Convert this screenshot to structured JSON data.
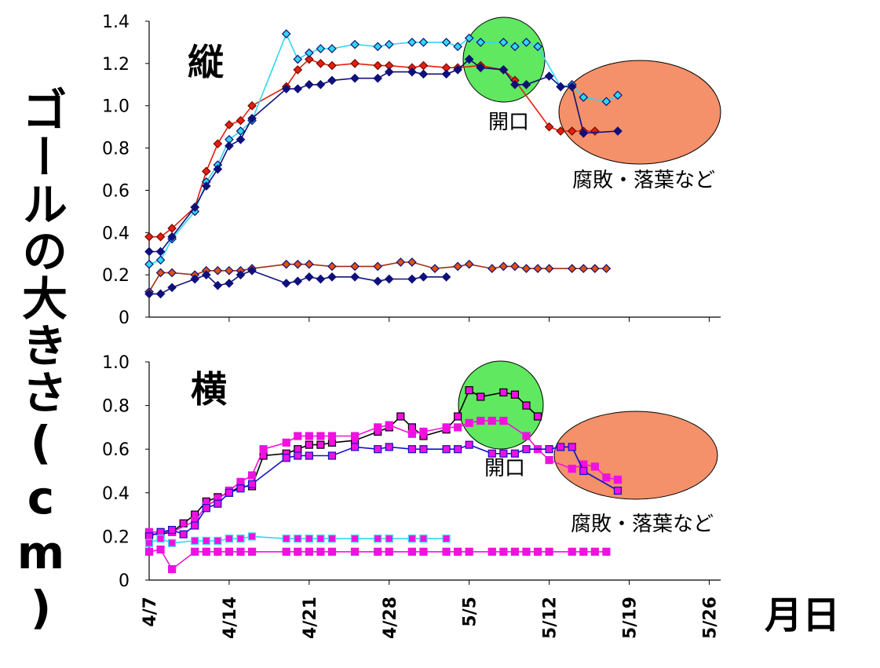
{
  "y_axis_label": "ゴールの大きさ(cm)",
  "x_axis_label": "月日",
  "x_ticks": [
    "4/7",
    "4/14",
    "4/21",
    "4/28",
    "5/5",
    "5/12",
    "5/19",
    "5/26"
  ],
  "colors": {
    "red": "#e02010",
    "cyan": "#30d8f0",
    "navy": "#10107a",
    "brown": "#a03010",
    "magenta": "#f010e0",
    "blue": "#1010c8",
    "green_ellipse": "#60e860",
    "orange_ellipse": "#f4906a"
  },
  "chart_data": [
    {
      "type": "line",
      "title": "縦",
      "ylim": [
        0,
        1.4
      ],
      "yticks": [
        "0",
        "0.2",
        "0.4",
        "0.6",
        "0.8",
        "1.0",
        "1.2",
        "1.4"
      ],
      "x_unit": "day (0 = 4/7)",
      "annotations": [
        {
          "text": "開口",
          "shape": "green ellipse"
        },
        {
          "text": "腐敗・落葉など",
          "shape": "orange ellipse"
        }
      ],
      "series": [
        {
          "color": "red",
          "marker": "diamond",
          "x": [
            0,
            1,
            2,
            4,
            5,
            6,
            7,
            8,
            9,
            12,
            13,
            14,
            15,
            16,
            18,
            20,
            21,
            23,
            24,
            26,
            27,
            29,
            31,
            32,
            35,
            36,
            37,
            38,
            39
          ],
          "y": [
            0.38,
            0.38,
            0.42,
            0.52,
            0.69,
            0.82,
            0.91,
            0.93,
            1.0,
            1.09,
            1.17,
            1.22,
            1.2,
            1.19,
            1.2,
            1.19,
            1.19,
            1.18,
            1.19,
            1.18,
            1.18,
            1.19,
            1.17,
            1.12,
            0.9,
            0.88,
            0.88,
            0.88,
            0.88
          ]
        },
        {
          "color": "cyan",
          "marker": "diamond",
          "x": [
            0,
            1,
            2,
            4,
            5,
            6,
            7,
            8,
            9,
            12,
            13,
            14,
            15,
            16,
            18,
            20,
            21,
            23,
            24,
            26,
            27,
            28,
            29,
            31,
            32,
            33,
            34,
            36,
            37,
            38,
            40,
            41
          ],
          "y": [
            0.25,
            0.27,
            0.37,
            0.5,
            0.64,
            0.72,
            0.84,
            0.88,
            0.93,
            1.34,
            1.22,
            1.25,
            1.27,
            1.27,
            1.29,
            1.28,
            1.29,
            1.3,
            1.3,
            1.3,
            1.28,
            1.32,
            1.3,
            1.3,
            1.28,
            1.3,
            1.28,
            1.09,
            1.1,
            1.04,
            1.02,
            1.05
          ]
        },
        {
          "color": "navy",
          "marker": "diamond",
          "x": [
            0,
            1,
            2,
            4,
            5,
            6,
            7,
            8,
            9,
            12,
            13,
            14,
            15,
            16,
            18,
            20,
            21,
            23,
            24,
            26,
            27,
            28,
            29,
            31,
            32,
            33,
            35,
            36,
            37,
            38,
            41
          ],
          "y": [
            0.31,
            0.31,
            0.38,
            0.52,
            0.62,
            0.7,
            0.81,
            0.84,
            0.94,
            1.08,
            1.08,
            1.1,
            1.1,
            1.12,
            1.13,
            1.13,
            1.16,
            1.16,
            1.15,
            1.15,
            1.17,
            1.22,
            1.18,
            1.17,
            1.1,
            1.1,
            1.14,
            1.09,
            1.09,
            0.87,
            0.88
          ]
        },
        {
          "color": "brown",
          "marker": "diamond",
          "x": [
            0,
            1,
            2,
            4,
            5,
            6,
            7,
            8,
            9,
            12,
            13,
            14,
            16,
            18,
            20,
            22,
            23,
            25,
            27,
            28,
            30,
            31,
            32,
            33,
            34,
            35,
            37,
            38,
            39,
            40
          ],
          "y": [
            0.12,
            0.21,
            0.21,
            0.2,
            0.22,
            0.22,
            0.22,
            0.22,
            0.23,
            0.25,
            0.25,
            0.25,
            0.24,
            0.24,
            0.24,
            0.26,
            0.26,
            0.23,
            0.24,
            0.25,
            0.23,
            0.24,
            0.24,
            0.23,
            0.23,
            0.23,
            0.23,
            0.23,
            0.23,
            0.23
          ]
        },
        {
          "color": "navy",
          "marker": "diamond",
          "x": [
            0,
            1,
            2,
            4,
            5,
            6,
            7,
            8,
            9,
            12,
            13,
            14,
            15,
            16,
            18,
            20,
            21,
            23,
            24,
            26
          ],
          "y": [
            0.11,
            0.11,
            0.14,
            0.18,
            0.2,
            0.15,
            0.16,
            0.2,
            0.22,
            0.16,
            0.17,
            0.19,
            0.18,
            0.19,
            0.19,
            0.17,
            0.18,
            0.18,
            0.19,
            0.19
          ]
        }
      ]
    },
    {
      "type": "line",
      "title": "横",
      "ylim": [
        0,
        1.0
      ],
      "yticks": [
        "0",
        "0.2",
        "0.4",
        "0.6",
        "0.8",
        "1.0"
      ],
      "x_unit": "day (0 = 4/7)",
      "annotations": [
        {
          "text": "開口",
          "shape": "green ellipse"
        },
        {
          "text": "腐敗・落葉など",
          "shape": "orange ellipse"
        }
      ],
      "series": [
        {
          "color": "black-outline magenta",
          "marker": "square",
          "x": [
            0,
            1,
            2,
            3,
            4,
            5,
            6,
            7,
            8,
            9,
            10,
            12,
            13,
            14,
            15,
            16,
            18,
            20,
            21,
            22,
            23,
            24,
            26,
            27,
            28,
            29,
            31,
            32,
            33,
            34
          ],
          "y": [
            0.21,
            0.21,
            0.22,
            0.26,
            0.3,
            0.36,
            0.38,
            0.4,
            0.43,
            0.43,
            0.57,
            0.58,
            0.6,
            0.62,
            0.62,
            0.63,
            0.64,
            0.68,
            0.7,
            0.75,
            0.7,
            0.66,
            0.69,
            0.75,
            0.87,
            0.84,
            0.86,
            0.85,
            0.8,
            0.75
          ]
        },
        {
          "color": "magenta",
          "marker": "square",
          "x": [
            0,
            1,
            2,
            4,
            5,
            6,
            7,
            8,
            9,
            10,
            12,
            13,
            14,
            15,
            16,
            18,
            20,
            21,
            23,
            24,
            26,
            27,
            28,
            29,
            30,
            31,
            33,
            34,
            35,
            37,
            38,
            39,
            40,
            41
          ],
          "y": [
            0.22,
            0.22,
            0.22,
            0.27,
            0.34,
            0.37,
            0.41,
            0.45,
            0.48,
            0.6,
            0.63,
            0.66,
            0.66,
            0.66,
            0.66,
            0.66,
            0.7,
            0.71,
            0.67,
            0.68,
            0.7,
            0.7,
            0.72,
            0.73,
            0.73,
            0.73,
            0.66,
            0.6,
            0.55,
            0.51,
            0.53,
            0.52,
            0.47,
            0.46
          ]
        },
        {
          "color": "blue",
          "marker": "square",
          "x": [
            0,
            1,
            2,
            3,
            4,
            5,
            6,
            7,
            8,
            9,
            12,
            13,
            14,
            16,
            18,
            20,
            21,
            23,
            24,
            26,
            27,
            28,
            30,
            31,
            32,
            33,
            35,
            36,
            37,
            38,
            41
          ],
          "y": [
            0.2,
            0.22,
            0.23,
            0.21,
            0.25,
            0.33,
            0.35,
            0.4,
            0.42,
            0.44,
            0.56,
            0.57,
            0.57,
            0.57,
            0.61,
            0.6,
            0.61,
            0.6,
            0.6,
            0.6,
            0.6,
            0.62,
            0.58,
            0.58,
            0.58,
            0.6,
            0.6,
            0.61,
            0.61,
            0.5,
            0.41
          ]
        },
        {
          "color": "cyan",
          "marker": "square",
          "x": [
            0,
            1,
            2,
            4,
            5,
            6,
            7,
            8,
            9,
            12,
            13,
            14,
            15,
            16,
            18,
            20,
            21,
            23,
            24,
            26
          ],
          "y": [
            0.17,
            0.19,
            0.17,
            0.18,
            0.18,
            0.18,
            0.19,
            0.19,
            0.2,
            0.19,
            0.19,
            0.19,
            0.19,
            0.19,
            0.19,
            0.19,
            0.19,
            0.19,
            0.19,
            0.19
          ]
        },
        {
          "color": "magenta",
          "marker": "square",
          "x": [
            0,
            1,
            2,
            4,
            5,
            6,
            7,
            8,
            9,
            12,
            13,
            14,
            15,
            16,
            18,
            20,
            21,
            23,
            24,
            26,
            27,
            28,
            30,
            31,
            32,
            33,
            34,
            35,
            37,
            38,
            39,
            40
          ],
          "y": [
            0.13,
            0.14,
            0.05,
            0.13,
            0.13,
            0.13,
            0.13,
            0.13,
            0.13,
            0.13,
            0.13,
            0.13,
            0.13,
            0.13,
            0.13,
            0.13,
            0.13,
            0.13,
            0.13,
            0.13,
            0.13,
            0.13,
            0.13,
            0.13,
            0.13,
            0.13,
            0.13,
            0.13,
            0.13,
            0.13,
            0.13,
            0.13
          ]
        }
      ]
    }
  ]
}
